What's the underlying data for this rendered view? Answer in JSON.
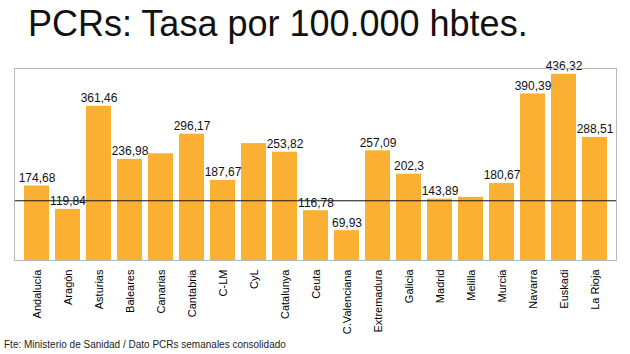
{
  "chart_data": {
    "type": "bar",
    "title": "PCRs: Tasa por 100.000 hbtes.",
    "caption": "Fte: Ministerio de Sanidad / Dato PCRs semanales consolidado",
    "categories": [
      "Andalucía",
      "Aragón",
      "Asturias",
      "Baleares",
      "Canarias",
      "Cantabria",
      "C-LM",
      "CyL",
      "Catalunya",
      "Ceuta",
      "C.Valenciana",
      "Extremadura",
      "Galicia",
      "Madrid",
      "Melilla",
      "Murcia",
      "Navarra",
      "Euskadi",
      "La Rioja"
    ],
    "values": [
      174.68,
      119.84,
      361.46,
      236.98,
      250,
      296.17,
      187.67,
      274,
      253.82,
      116.78,
      69.93,
      257.09,
      202.3,
      143.89,
      148,
      180.67,
      390.39,
      436.32,
      288.51
    ],
    "value_labels": [
      "174,68",
      "119,84",
      "361,46",
      "236,98",
      null,
      "296,17",
      "187,67",
      null,
      "253,82",
      "116,78",
      "69,93",
      "257,09",
      "202,3",
      "143,89",
      null,
      "180,67",
      "390,39",
      "436,32",
      "288,51"
    ],
    "reference_line": 140,
    "color": "#fbb034",
    "ylim": [
      0,
      450
    ],
    "yticks": [],
    "grid": false,
    "data_labels": true,
    "tick_labels": "x"
  }
}
